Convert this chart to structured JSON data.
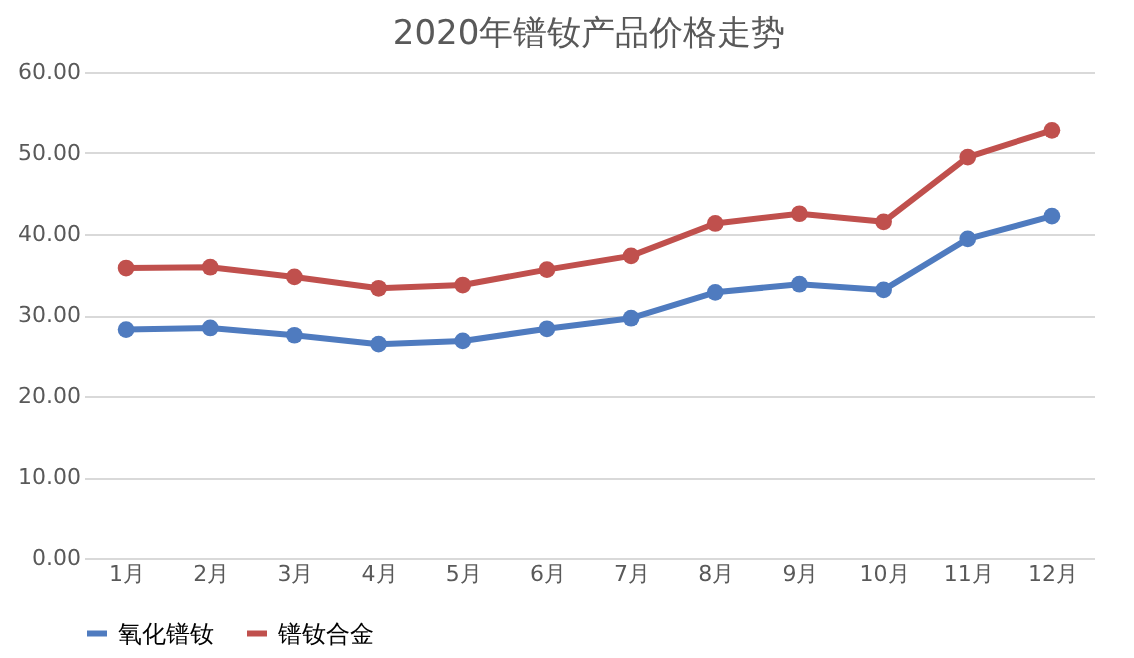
{
  "chart_data": {
    "type": "line",
    "title": "2020年镨钕产品价格走势",
    "categories": [
      "1月",
      "2月",
      "3月",
      "4月",
      "5月",
      "6月",
      "7月",
      "8月",
      "9月",
      "10月",
      "11月",
      "12月"
    ],
    "series": [
      {
        "name": "氧化镨钕",
        "color": "#4f7bbf",
        "values": [
          28.2,
          28.4,
          27.5,
          26.4,
          26.8,
          28.3,
          29.6,
          32.8,
          33.8,
          33.1,
          39.4,
          42.2
        ]
      },
      {
        "name": "镨钕合金",
        "color": "#c0504d",
        "values": [
          35.8,
          35.9,
          34.7,
          33.3,
          33.7,
          35.6,
          37.3,
          41.3,
          42.5,
          41.5,
          49.5,
          52.8
        ]
      }
    ],
    "ylim": [
      0,
      60
    ],
    "yticks": [
      {
        "value": 0,
        "label": "0.00"
      },
      {
        "value": 10,
        "label": "10.00"
      },
      {
        "value": 20,
        "label": "20.00"
      },
      {
        "value": 30,
        "label": "30.00"
      },
      {
        "value": 40,
        "label": "40.00"
      },
      {
        "value": 50,
        "label": "50.00"
      },
      {
        "value": 60,
        "label": "60.00"
      }
    ],
    "grid": "y",
    "legend": "bottom",
    "marker": "circle",
    "line_style": "solid"
  }
}
